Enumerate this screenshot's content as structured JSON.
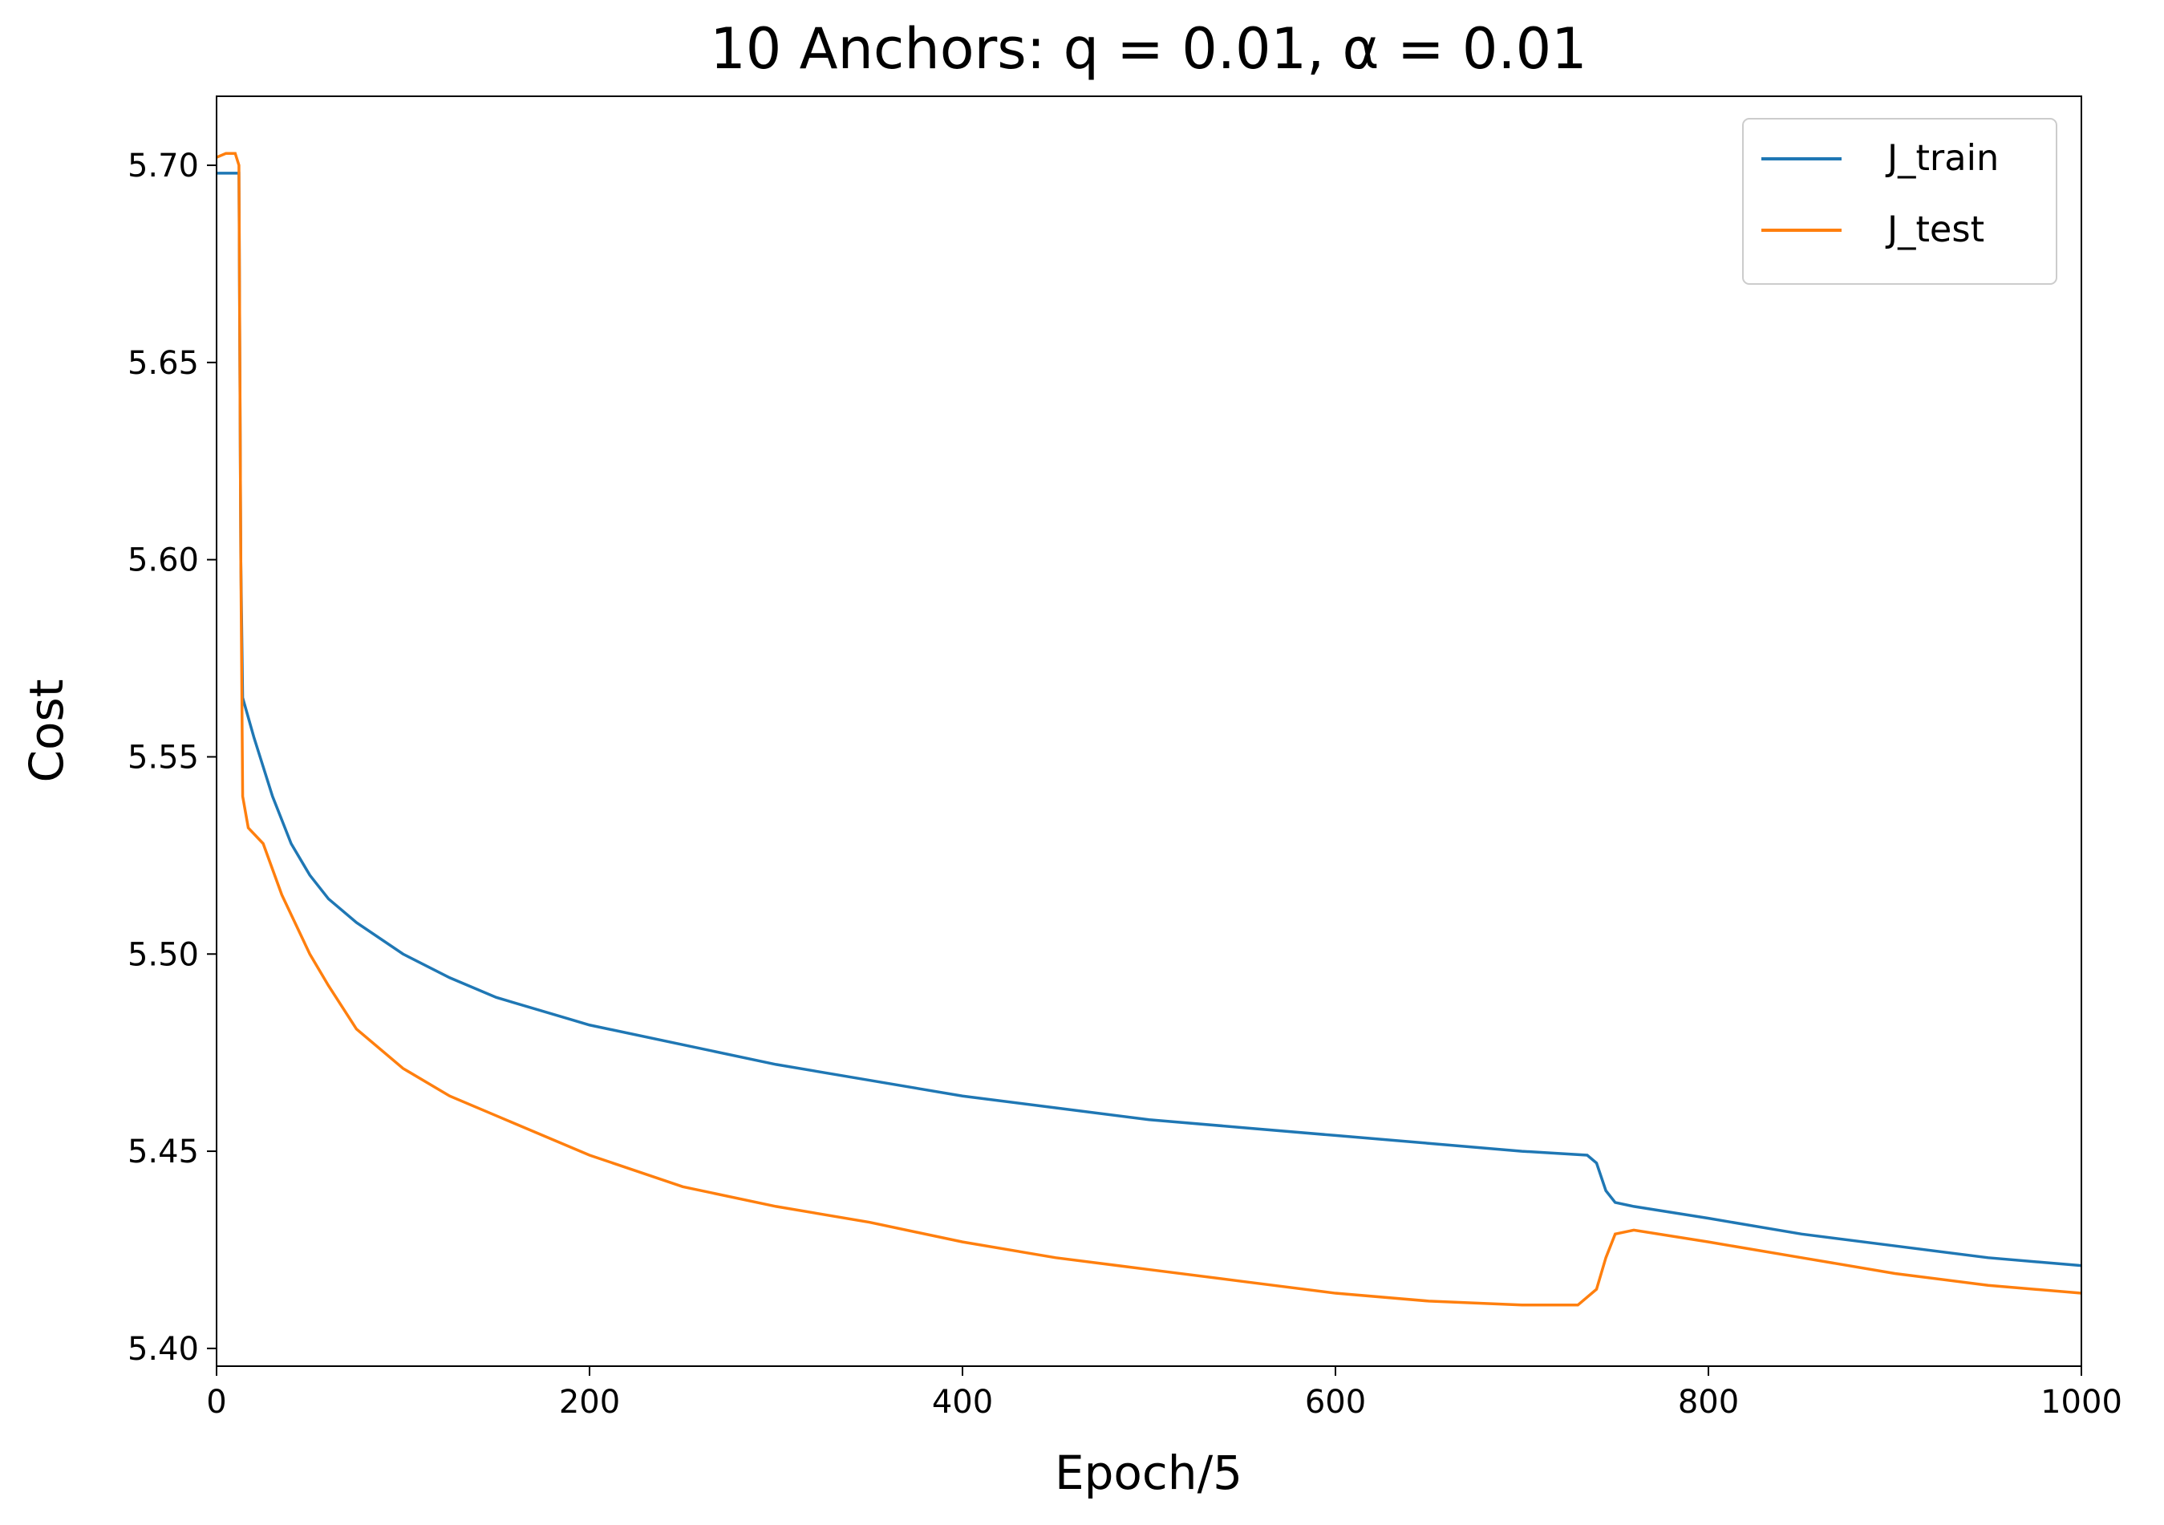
{
  "chart_data": {
    "type": "line",
    "title": "10 Anchors: q = 0.01, α = 0.01",
    "xlabel": "Epoch/5",
    "ylabel": "Cost",
    "xlim": [
      0,
      1000
    ],
    "ylim": [
      5.3955,
      5.7175
    ],
    "xticks": [
      0,
      200,
      400,
      600,
      800,
      1000
    ],
    "yticks": [
      {
        "value": 5.4,
        "label": "5.40"
      },
      {
        "value": 5.45,
        "label": "5.45"
      },
      {
        "value": 5.5,
        "label": "5.50"
      },
      {
        "value": 5.55,
        "label": "5.55"
      },
      {
        "value": 5.6,
        "label": "5.60"
      },
      {
        "value": 5.65,
        "label": "5.65"
      },
      {
        "value": 5.7,
        "label": "5.70"
      }
    ],
    "legend": "upper right",
    "series": [
      {
        "name": "J_train",
        "color": "#1f77b4",
        "x": [
          0,
          12,
          13,
          14,
          20,
          30,
          40,
          50,
          60,
          75,
          100,
          125,
          150,
          200,
          250,
          300,
          350,
          400,
          450,
          500,
          550,
          600,
          650,
          700,
          735,
          740,
          745,
          750,
          760,
          800,
          850,
          900,
          950,
          1000
        ],
        "values": [
          5.698,
          5.698,
          5.6,
          5.565,
          5.555,
          5.54,
          5.528,
          5.52,
          5.514,
          5.508,
          5.5,
          5.494,
          5.489,
          5.482,
          5.477,
          5.472,
          5.468,
          5.464,
          5.461,
          5.458,
          5.456,
          5.454,
          5.452,
          5.45,
          5.449,
          5.447,
          5.44,
          5.437,
          5.436,
          5.433,
          5.429,
          5.426,
          5.423,
          5.421
        ]
      },
      {
        "name": "J_test",
        "color": "#ff7f0e",
        "x": [
          0,
          5,
          10,
          12,
          13,
          14,
          17,
          25,
          35,
          50,
          60,
          75,
          100,
          125,
          150,
          200,
          250,
          300,
          350,
          400,
          450,
          500,
          550,
          600,
          650,
          700,
          730,
          740,
          745,
          750,
          760,
          800,
          850,
          900,
          950,
          1000
        ],
        "values": [
          5.702,
          5.703,
          5.703,
          5.7,
          5.6,
          5.54,
          5.532,
          5.528,
          5.515,
          5.5,
          5.492,
          5.481,
          5.471,
          5.464,
          5.459,
          5.449,
          5.441,
          5.436,
          5.432,
          5.427,
          5.423,
          5.42,
          5.417,
          5.414,
          5.412,
          5.411,
          5.411,
          5.415,
          5.423,
          5.429,
          5.43,
          5.427,
          5.423,
          5.419,
          5.416,
          5.414
        ]
      }
    ]
  }
}
